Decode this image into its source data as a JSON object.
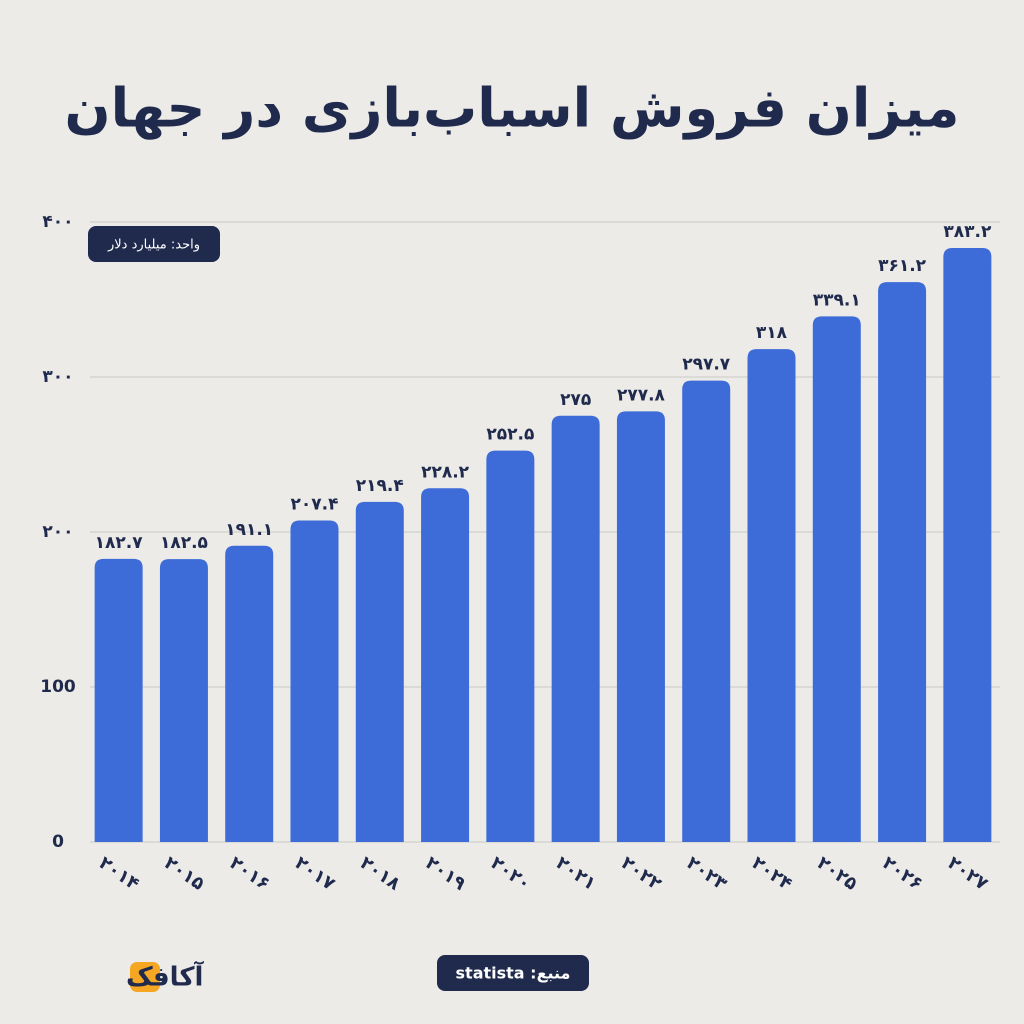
{
  "chart_data": {
    "type": "bar",
    "title": "میزان فروش اسباب‌بازی در جهان",
    "annotations": {
      "unit": "واحد: میلیارد دلار",
      "source": "منبع: statista",
      "logo": "آکافک"
    },
    "categories": [
      "۲۰۱۴",
      "۲۰۱۵",
      "۲۰۱۶",
      "۲۰۱۷",
      "۲۰۱۸",
      "۲۰۱۹",
      "۲۰۲۰",
      "۲۰۲۱",
      "۲۰۲۲",
      "۲۰۲۳",
      "۲۰۲۴",
      "۲۰۲۵",
      "۲۰۲۶",
      "۲۰۲۷"
    ],
    "values": [
      182.7,
      182.5,
      191.1,
      207.4,
      219.4,
      228.2,
      252.5,
      275,
      277.8,
      297.7,
      318,
      339.1,
      361.2,
      383.2
    ],
    "value_labels": [
      "۱۸۲.۷",
      "۱۸۲.۵",
      "۱۹۱.۱",
      "۲۰۷.۴",
      "۲۱۹.۴",
      "۲۲۸.۲",
      "۲۵۲.۵",
      "۲۷۵",
      "۲۷۷.۸",
      "۲۹۷.۷",
      "۳۱۸",
      "۳۳۹.۱",
      "۳۶۱.۲",
      "۳۸۳.۲"
    ],
    "color": "#3d6bd8",
    "ylim": [
      0,
      400
    ],
    "yticks": [
      0,
      100,
      {
        "value": 200,
        "label": "۲۰۰"
      },
      {
        "value": 300,
        "label": "۳۰۰"
      },
      {
        "value": 400,
        "label": "۴۰۰"
      }
    ],
    "grid": true
  }
}
